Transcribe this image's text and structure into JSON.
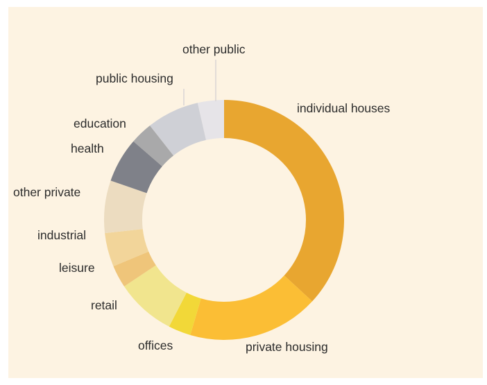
{
  "chart_data": {
    "type": "pie",
    "donut": true,
    "title": "",
    "slices": [
      {
        "label": "individual houses",
        "value": 36.5,
        "color": "#e8a630"
      },
      {
        "label": "private housing",
        "value": 17.5,
        "color": "#fbbe35"
      },
      {
        "label": "offices",
        "value": 3.0,
        "color": "#f2d838"
      },
      {
        "label": "retail",
        "value": 8.0,
        "color": "#f1e58e"
      },
      {
        "label": "leisure",
        "value": 3.0,
        "color": "#efc57a"
      },
      {
        "label": "industrial",
        "value": 4.5,
        "color": "#f2d59a"
      },
      {
        "label": "other private",
        "value": 7.0,
        "color": "#ecdcc0"
      },
      {
        "label": "health",
        "value": 6.0,
        "color": "#7f8189"
      },
      {
        "label": "education",
        "value": 3.0,
        "color": "#a9a9aa"
      },
      {
        "label": "public housing",
        "value": 7.0,
        "color": "#cfd0d6"
      },
      {
        "label": "other public",
        "value": 3.5,
        "color": "#e6e4e8"
      }
    ]
  }
}
